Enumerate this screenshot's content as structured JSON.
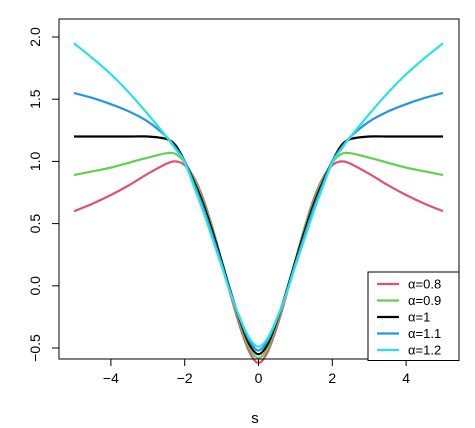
{
  "chart_data": {
    "type": "line",
    "title": "",
    "xlabel": "s",
    "ylabel": "",
    "xlim": [
      -5,
      5
    ],
    "ylim": [
      -0.7,
      2.0
    ],
    "x_ticks": [
      -4,
      -2,
      0,
      2,
      4
    ],
    "x_tick_labels": [
      "−4",
      "−2",
      "0",
      "2",
      "4"
    ],
    "y_ticks": [
      -0.5,
      0.0,
      0.5,
      1.0,
      1.5,
      2.0
    ],
    "y_tick_labels": [
      "−0.5",
      "0.0",
      "0.5",
      "1.0",
      "1.5",
      "2.0"
    ],
    "grid": false,
    "legend_position": "bottom-right",
    "x": [
      -5,
      -4.5,
      -4,
      -3.5,
      -3,
      -2.5,
      -2.25,
      -2,
      -1.75,
      -1.5,
      -1.25,
      -1,
      -0.75,
      -0.5,
      -0.25,
      0,
      0.25,
      0.5,
      0.75,
      1,
      1.25,
      1.5,
      1.75,
      2,
      2.25,
      2.5,
      3,
      3.5,
      4,
      4.5,
      5
    ],
    "series": [
      {
        "name": "α=0.8",
        "color": "#df536b",
        "values": [
          0.6,
          0.66,
          0.73,
          0.81,
          0.9,
          0.98,
          1.0,
          0.97,
          0.87,
          0.7,
          0.47,
          0.2,
          -0.08,
          -0.33,
          -0.53,
          -0.62,
          -0.53,
          -0.33,
          -0.08,
          0.2,
          0.47,
          0.7,
          0.87,
          0.97,
          1.0,
          0.98,
          0.9,
          0.81,
          0.73,
          0.66,
          0.6
        ]
      },
      {
        "name": "α=0.9",
        "color": "#61d04f",
        "values": [
          0.89,
          0.92,
          0.95,
          0.99,
          1.03,
          1.065,
          1.06,
          0.99,
          0.86,
          0.68,
          0.46,
          0.2,
          -0.06,
          -0.3,
          -0.5,
          -0.58,
          -0.5,
          -0.3,
          -0.06,
          0.2,
          0.46,
          0.68,
          0.86,
          0.99,
          1.06,
          1.065,
          1.03,
          0.99,
          0.95,
          0.92,
          0.89
        ]
      },
      {
        "name": "α=1",
        "color": "#000000",
        "values": [
          1.2,
          1.2,
          1.2,
          1.2,
          1.2,
          1.18,
          1.13,
          1.0,
          0.84,
          0.66,
          0.44,
          0.2,
          -0.05,
          -0.28,
          -0.47,
          -0.55,
          -0.47,
          -0.28,
          -0.05,
          0.2,
          0.44,
          0.66,
          0.84,
          1.0,
          1.13,
          1.18,
          1.2,
          1.2,
          1.2,
          1.2,
          1.2
        ]
      },
      {
        "name": "α=1.1",
        "color": "#2297e6",
        "values": [
          1.55,
          1.51,
          1.46,
          1.4,
          1.32,
          1.2,
          1.11,
          1.0,
          0.82,
          0.63,
          0.41,
          0.18,
          -0.06,
          -0.27,
          -0.44,
          -0.52,
          -0.44,
          -0.27,
          -0.06,
          0.18,
          0.41,
          0.63,
          0.82,
          1.0,
          1.11,
          1.2,
          1.32,
          1.4,
          1.46,
          1.51,
          1.55
        ]
      },
      {
        "name": "α=1.2",
        "color": "#28e2e5",
        "values": [
          1.95,
          1.83,
          1.7,
          1.55,
          1.38,
          1.2,
          1.1,
          0.99,
          0.8,
          0.6,
          0.38,
          0.16,
          -0.07,
          -0.26,
          -0.42,
          -0.49,
          -0.42,
          -0.26,
          -0.07,
          0.16,
          0.38,
          0.6,
          0.8,
          0.99,
          1.1,
          1.2,
          1.38,
          1.55,
          1.7,
          1.83,
          1.95
        ]
      }
    ]
  }
}
